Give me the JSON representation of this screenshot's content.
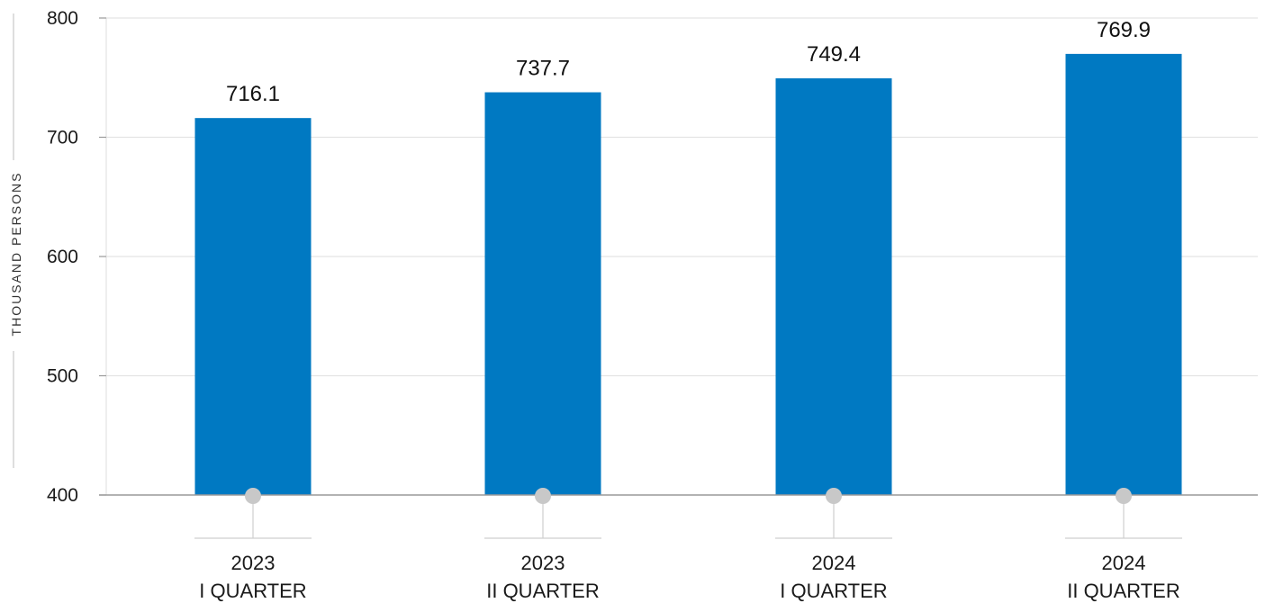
{
  "chart_data": {
    "type": "bar",
    "categories": [
      {
        "year": "2023",
        "quarter": "I QUARTER"
      },
      {
        "year": "2023",
        "quarter": "II QUARTER"
      },
      {
        "year": "2024",
        "quarter": "I QUARTER"
      },
      {
        "year": "2024",
        "quarter": "II QUARTER"
      }
    ],
    "values": [
      716.1,
      737.7,
      749.4,
      769.9
    ],
    "value_labels": [
      "716.1",
      "737.7",
      "749.4",
      "769.9"
    ],
    "ylabel": "THOUSAND PERSONS",
    "ylim": [
      400,
      800
    ],
    "yticks": [
      400,
      500,
      600,
      700,
      800
    ],
    "grid": true,
    "colors": {
      "bar": "#0079C2",
      "grid": "#e3e3e3",
      "axis": "#9a9a9a",
      "marker": "#c8c8c8",
      "stem": "#cfcfcf"
    }
  }
}
